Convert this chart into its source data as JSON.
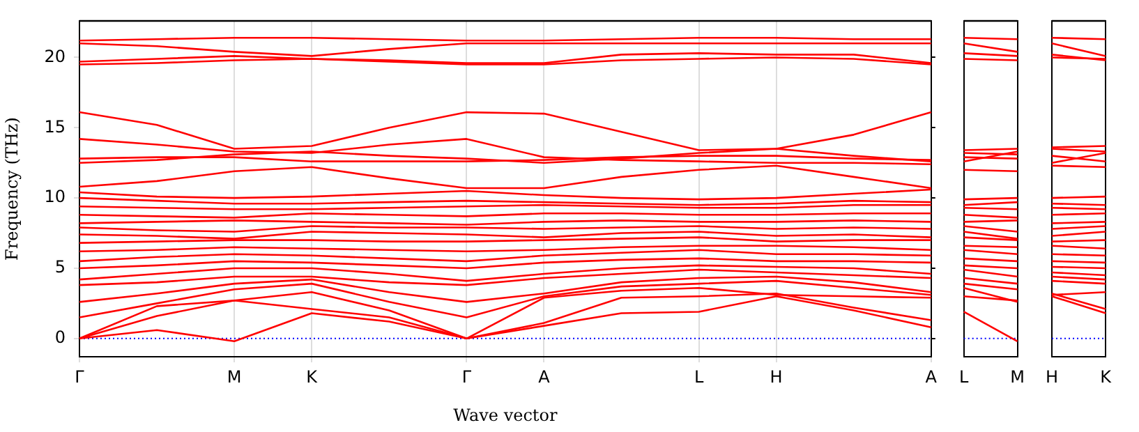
{
  "chart_data": [
    {
      "type": "line",
      "xlabel": "Wave vector",
      "ylabel": "Frequency (THz)",
      "legend": false,
      "grid": "x",
      "marker": "none",
      "line_style": "solid",
      "categories": [
        "Γ",
        null,
        "M",
        "K",
        null,
        "Γ",
        "A",
        null,
        "L",
        "H",
        null,
        "A"
      ],
      "ylim": [
        -1.3,
        22.6
      ],
      "yticks": [
        0,
        5,
        10,
        15,
        20
      ],
      "ref_lines": [
        {
          "axis": "y",
          "value": 0,
          "color": "#0000ff",
          "line_style": "dotted"
        }
      ],
      "series": [
        {
          "color": "#ff0000",
          "values": [
            0,
            0.6,
            -0.2,
            1.8,
            1.2,
            0,
            0.9,
            1.8,
            1.9,
            3.0,
            2.0,
            0.8
          ]
        },
        {
          "color": "#ff0000",
          "values": [
            0,
            1.6,
            2.7,
            2.1,
            1.5,
            0,
            1.1,
            2.9,
            3.0,
            3.2,
            2.2,
            1.3
          ]
        },
        {
          "color": "#ff0000",
          "values": [
            0,
            2.3,
            2.7,
            3.3,
            2.0,
            0,
            2.9,
            3.4,
            3.6,
            3.1,
            3.0,
            2.9
          ]
        },
        {
          "color": "#ff0000",
          "values": [
            1.5,
            2.5,
            3.5,
            3.9,
            2.6,
            1.5,
            3.0,
            3.7,
            3.9,
            4.1,
            3.6,
            3.1
          ]
        },
        {
          "color": "#ff0000",
          "values": [
            2.6,
            3.2,
            3.9,
            4.2,
            3.3,
            2.6,
            3.2,
            4.0,
            4.3,
            4.4,
            4.0,
            3.3
          ]
        },
        {
          "color": "#ff0000",
          "values": [
            3.8,
            4.0,
            4.4,
            4.4,
            4.0,
            3.8,
            4.3,
            4.6,
            4.9,
            4.7,
            4.5,
            4.3
          ]
        },
        {
          "color": "#ff0000",
          "values": [
            4.2,
            4.6,
            5.0,
            5.0,
            4.6,
            4.1,
            4.6,
            5.0,
            5.2,
            5.1,
            5.0,
            4.6
          ]
        },
        {
          "color": "#ff0000",
          "values": [
            5.0,
            5.2,
            5.5,
            5.4,
            5.2,
            5.0,
            5.4,
            5.6,
            5.7,
            5.5,
            5.5,
            5.4
          ]
        },
        {
          "color": "#ff0000",
          "values": [
            5.5,
            5.8,
            6.0,
            5.9,
            5.7,
            5.5,
            5.9,
            6.1,
            6.3,
            6.0,
            6.0,
            5.9
          ]
        },
        {
          "color": "#ff0000",
          "values": [
            6.2,
            6.3,
            6.5,
            6.4,
            6.3,
            6.2,
            6.3,
            6.5,
            6.6,
            6.6,
            6.5,
            6.3
          ]
        },
        {
          "color": "#ff0000",
          "values": [
            6.8,
            6.9,
            7.0,
            7.0,
            6.9,
            6.9,
            7.0,
            7.1,
            7.2,
            6.9,
            7.0,
            7.0
          ]
        },
        {
          "color": "#ff0000",
          "values": [
            7.4,
            7.3,
            7.1,
            7.6,
            7.5,
            7.4,
            7.2,
            7.5,
            7.6,
            7.3,
            7.4,
            7.2
          ]
        },
        {
          "color": "#ff0000",
          "values": [
            7.9,
            7.7,
            7.6,
            8.0,
            7.9,
            7.9,
            7.8,
            7.9,
            8.0,
            7.8,
            7.9,
            7.8
          ]
        },
        {
          "color": "#ff0000",
          "values": [
            8.2,
            8.3,
            8.4,
            8.3,
            8.2,
            8.1,
            8.3,
            8.4,
            8.3,
            8.3,
            8.4,
            8.3
          ]
        },
        {
          "color": "#ff0000",
          "values": [
            8.8,
            8.7,
            8.6,
            8.9,
            8.8,
            8.7,
            8.9,
            8.9,
            8.8,
            8.8,
            8.9,
            8.9
          ]
        },
        {
          "color": "#ff0000",
          "values": [
            9.4,
            9.3,
            9.2,
            9.2,
            9.3,
            9.4,
            9.5,
            9.4,
            9.3,
            9.3,
            9.5,
            9.5
          ]
        },
        {
          "color": "#ff0000",
          "values": [
            10.0,
            9.8,
            9.6,
            9.6,
            9.7,
            9.8,
            9.7,
            9.6,
            9.5,
            9.6,
            9.8,
            9.7
          ]
        },
        {
          "color": "#ff0000",
          "values": [
            10.4,
            10.1,
            10.0,
            10.1,
            10.3,
            10.5,
            10.2,
            10.0,
            9.9,
            10.0,
            10.3,
            10.6
          ]
        },
        {
          "color": "#ff0000",
          "values": [
            10.8,
            11.2,
            11.9,
            12.2,
            11.4,
            10.7,
            10.7,
            11.5,
            12.0,
            12.3,
            11.5,
            10.7
          ]
        },
        {
          "color": "#ff0000",
          "values": [
            12.5,
            12.7,
            13.1,
            13.3,
            13.0,
            12.8,
            12.5,
            12.8,
            13.2,
            13.5,
            13.0,
            12.6
          ]
        },
        {
          "color": "#ff0000",
          "values": [
            12.8,
            12.9,
            12.9,
            12.6,
            12.6,
            12.6,
            12.7,
            12.9,
            13.0,
            13.0,
            12.8,
            12.7
          ]
        },
        {
          "color": "#ff0000",
          "values": [
            16.1,
            15.2,
            13.5,
            13.7,
            15.0,
            16.1,
            16.0,
            14.7,
            13.4,
            13.5,
            14.5,
            16.1
          ]
        },
        {
          "color": "#ff0000",
          "values": [
            14.2,
            13.8,
            13.3,
            13.2,
            13.8,
            14.2,
            12.9,
            12.7,
            12.6,
            12.5,
            12.5,
            12.4
          ]
        },
        {
          "color": "#ff0000",
          "values": [
            19.5,
            19.6,
            19.8,
            19.9,
            19.7,
            19.5,
            19.5,
            19.8,
            19.9,
            20.0,
            19.9,
            19.5
          ]
        },
        {
          "color": "#ff0000",
          "values": [
            19.7,
            19.9,
            20.1,
            19.9,
            19.8,
            19.6,
            19.6,
            20.2,
            20.3,
            20.2,
            20.2,
            19.6
          ]
        },
        {
          "color": "#ff0000",
          "values": [
            21.0,
            20.8,
            20.4,
            20.1,
            20.6,
            21.0,
            21.0,
            21.0,
            21.0,
            21.0,
            21.0,
            21.0
          ]
        },
        {
          "color": "#ff0000",
          "values": [
            21.2,
            21.3,
            21.4,
            21.4,
            21.3,
            21.2,
            21.2,
            21.3,
            21.4,
            21.4,
            21.3,
            21.3
          ]
        }
      ]
    },
    {
      "type": "line",
      "legend": false,
      "marker": "none",
      "line_style": "solid",
      "tick_labels": "x",
      "categories": [
        "L",
        "M"
      ],
      "ylim": [
        -1.3,
        22.6
      ],
      "yticks": [
        0,
        5,
        10,
        15,
        20
      ],
      "ref_lines": [
        {
          "axis": "y",
          "value": 0,
          "color": "#0000ff",
          "line_style": "dotted"
        }
      ],
      "series": [
        {
          "color": "#ff0000",
          "values": [
            1.9,
            -0.2
          ]
        },
        {
          "color": "#ff0000",
          "values": [
            3.0,
            2.7
          ]
        },
        {
          "color": "#ff0000",
          "values": [
            3.6,
            2.6
          ]
        },
        {
          "color": "#ff0000",
          "values": [
            3.9,
            3.5
          ]
        },
        {
          "color": "#ff0000",
          "values": [
            4.3,
            3.9
          ]
        },
        {
          "color": "#ff0000",
          "values": [
            4.9,
            4.4
          ]
        },
        {
          "color": "#ff0000",
          "values": [
            5.2,
            5.0
          ]
        },
        {
          "color": "#ff0000",
          "values": [
            5.7,
            5.5
          ]
        },
        {
          "color": "#ff0000",
          "values": [
            6.3,
            6.0
          ]
        },
        {
          "color": "#ff0000",
          "values": [
            6.6,
            6.5
          ]
        },
        {
          "color": "#ff0000",
          "values": [
            7.2,
            7.0
          ]
        },
        {
          "color": "#ff0000",
          "values": [
            7.6,
            7.1
          ]
        },
        {
          "color": "#ff0000",
          "values": [
            8.0,
            7.6
          ]
        },
        {
          "color": "#ff0000",
          "values": [
            8.3,
            8.4
          ]
        },
        {
          "color": "#ff0000",
          "values": [
            8.8,
            8.6
          ]
        },
        {
          "color": "#ff0000",
          "values": [
            9.3,
            9.2
          ]
        },
        {
          "color": "#ff0000",
          "values": [
            9.5,
            9.7
          ]
        },
        {
          "color": "#ff0000",
          "values": [
            9.9,
            10.0
          ]
        },
        {
          "color": "#ff0000",
          "values": [
            12.0,
            11.9
          ]
        },
        {
          "color": "#ff0000",
          "values": [
            13.2,
            13.1
          ]
        },
        {
          "color": "#ff0000",
          "values": [
            12.9,
            12.8
          ]
        },
        {
          "color": "#ff0000",
          "values": [
            13.4,
            13.5
          ]
        },
        {
          "color": "#ff0000",
          "values": [
            12.6,
            13.3
          ]
        },
        {
          "color": "#ff0000",
          "values": [
            19.9,
            19.8
          ]
        },
        {
          "color": "#ff0000",
          "values": [
            20.3,
            20.1
          ]
        },
        {
          "color": "#ff0000",
          "values": [
            21.0,
            20.4
          ]
        },
        {
          "color": "#ff0000",
          "values": [
            21.4,
            21.3
          ]
        }
      ]
    },
    {
      "type": "line",
      "legend": false,
      "marker": "none",
      "line_style": "solid",
      "tick_labels": "x",
      "categories": [
        "H",
        "K"
      ],
      "ylim": [
        -1.3,
        22.6
      ],
      "yticks": [
        0,
        5,
        10,
        15,
        20
      ],
      "ref_lines": [
        {
          "axis": "y",
          "value": 0,
          "color": "#0000ff",
          "line_style": "dotted"
        }
      ],
      "series": [
        {
          "color": "#ff0000",
          "values": [
            3.0,
            1.8
          ]
        },
        {
          "color": "#ff0000",
          "values": [
            3.2,
            2.1
          ]
        },
        {
          "color": "#ff0000",
          "values": [
            3.1,
            3.3
          ]
        },
        {
          "color": "#ff0000",
          "values": [
            4.1,
            3.9
          ]
        },
        {
          "color": "#ff0000",
          "values": [
            4.4,
            4.2
          ]
        },
        {
          "color": "#ff0000",
          "values": [
            4.7,
            4.5
          ]
        },
        {
          "color": "#ff0000",
          "values": [
            5.1,
            5.0
          ]
        },
        {
          "color": "#ff0000",
          "values": [
            5.5,
            5.4
          ]
        },
        {
          "color": "#ff0000",
          "values": [
            6.0,
            5.9
          ]
        },
        {
          "color": "#ff0000",
          "values": [
            6.6,
            6.4
          ]
        },
        {
          "color": "#ff0000",
          "values": [
            6.9,
            7.0
          ]
        },
        {
          "color": "#ff0000",
          "values": [
            7.3,
            7.6
          ]
        },
        {
          "color": "#ff0000",
          "values": [
            7.8,
            8.0
          ]
        },
        {
          "color": "#ff0000",
          "values": [
            8.2,
            8.3
          ]
        },
        {
          "color": "#ff0000",
          "values": [
            8.8,
            8.9
          ]
        },
        {
          "color": "#ff0000",
          "values": [
            9.3,
            9.2
          ]
        },
        {
          "color": "#ff0000",
          "values": [
            9.6,
            9.5
          ]
        },
        {
          "color": "#ff0000",
          "values": [
            10.0,
            10.1
          ]
        },
        {
          "color": "#ff0000",
          "values": [
            12.3,
            12.2
          ]
        },
        {
          "color": "#ff0000",
          "values": [
            13.5,
            13.3
          ]
        },
        {
          "color": "#ff0000",
          "values": [
            13.0,
            12.6
          ]
        },
        {
          "color": "#ff0000",
          "values": [
            13.6,
            13.7
          ]
        },
        {
          "color": "#ff0000",
          "values": [
            12.5,
            13.2
          ]
        },
        {
          "color": "#ff0000",
          "values": [
            20.0,
            19.9
          ]
        },
        {
          "color": "#ff0000",
          "values": [
            20.2,
            19.8
          ]
        },
        {
          "color": "#ff0000",
          "values": [
            21.0,
            20.1
          ]
        },
        {
          "color": "#ff0000",
          "values": [
            21.4,
            21.3
          ]
        }
      ]
    }
  ]
}
